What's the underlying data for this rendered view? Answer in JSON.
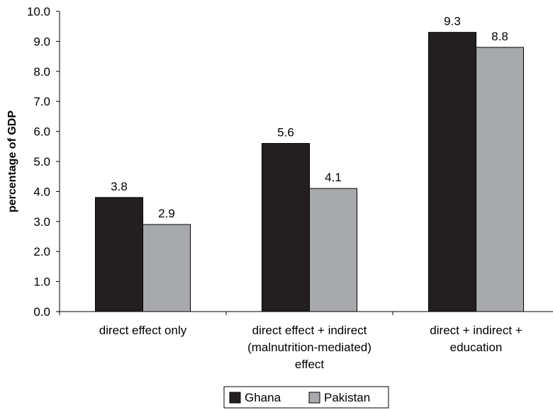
{
  "chart_data": {
    "type": "bar",
    "ylabel": "percentage of GDP",
    "xlabel": "",
    "ylim": [
      0,
      10
    ],
    "yticks": [
      "0.0",
      "1.0",
      "2.0",
      "3.0",
      "4.0",
      "5.0",
      "6.0",
      "7.0",
      "8.0",
      "9.0",
      "10.0"
    ],
    "categories": [
      [
        "direct effect only"
      ],
      [
        "direct effect + indirect",
        "(malnutrition-mediated)",
        "effect"
      ],
      [
        "direct + indirect +",
        "education"
      ]
    ],
    "series": [
      {
        "name": "Ghana",
        "values": [
          3.8,
          5.6,
          9.3
        ],
        "labels": [
          "3.8",
          "5.6",
          "9.3"
        ],
        "color": "#231f20"
      },
      {
        "name": "Pakistan",
        "values": [
          2.9,
          4.1,
          8.8
        ],
        "labels": [
          "2.9",
          "4.1",
          "8.8"
        ],
        "color": "#a7a9ac"
      }
    ],
    "legend": "bottom",
    "grid": false
  }
}
